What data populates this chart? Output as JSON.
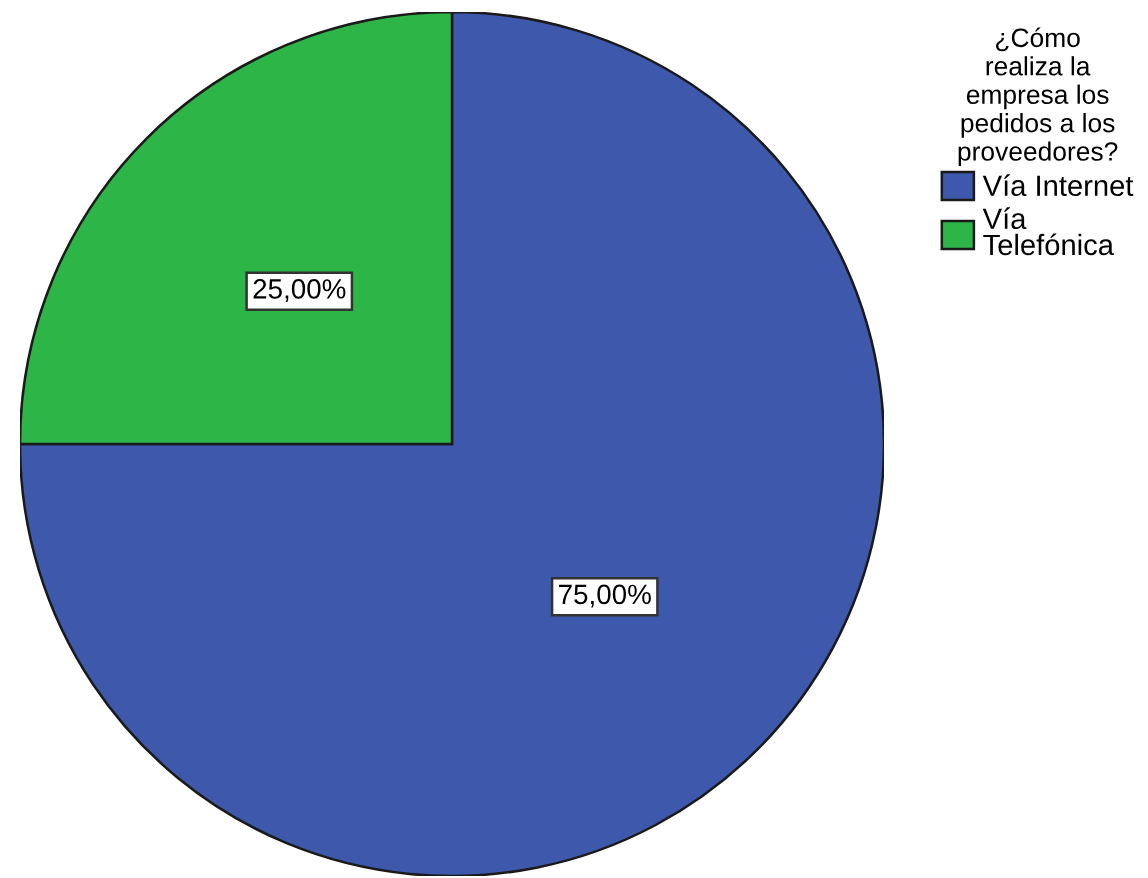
{
  "chart_data": {
    "type": "pie",
    "legend_title": "¿Cómo\nrealiza la\nempresa los\npedidos a los\nproveedores?",
    "categories": [
      "Vía Internet",
      "Vía\nTelefónica"
    ],
    "values": [
      75,
      25
    ],
    "colors": [
      "#3e58ac",
      "#2eb548"
    ],
    "value_labels": [
      "75,00%",
      "25,00%"
    ],
    "legend": "top right"
  }
}
